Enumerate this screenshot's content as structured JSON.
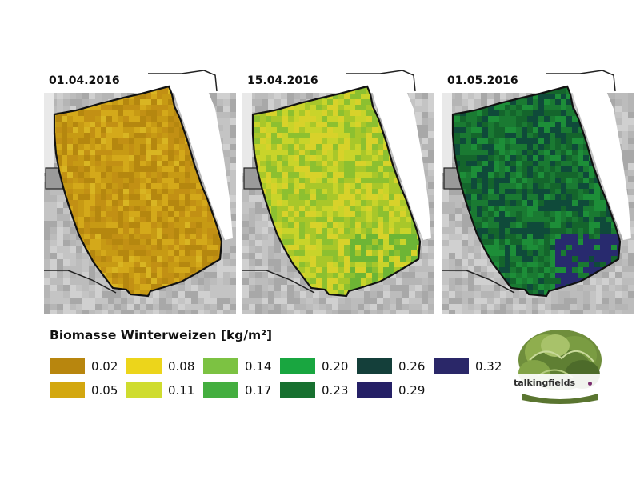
{
  "panels": [
    {
      "date": "01.04.2016",
      "colors": [
        "#b5870f",
        "#c79a14",
        "#d4a91a",
        "#c29014",
        "#d9b522"
      ]
    },
    {
      "date": "15.04.2016",
      "colors": [
        "#c9d42a",
        "#a8c72a",
        "#8cc030",
        "#d8d22a",
        "#6db535"
      ]
    },
    {
      "date": "01.05.2016",
      "colors": [
        "#1a7a32",
        "#14652c",
        "#0f4a3a",
        "#1d8e38",
        "#282a6e"
      ]
    }
  ],
  "legend": {
    "title": "Biomasse Winterweizen [kg/m²]",
    "items": [
      {
        "value": "0.02",
        "color": "#b8860e"
      },
      {
        "value": "0.05",
        "color": "#d3a70f"
      },
      {
        "value": "0.08",
        "color": "#ecd51b"
      },
      {
        "value": "0.11",
        "color": "#cfdc2f"
      },
      {
        "value": "0.14",
        "color": "#7cc242"
      },
      {
        "value": "0.17",
        "color": "#44ae3f"
      },
      {
        "value": "0.20",
        "color": "#19a640"
      },
      {
        "value": "0.23",
        "color": "#17702f"
      },
      {
        "value": "0.26",
        "color": "#143f3a"
      },
      {
        "value": "0.29",
        "color": "#252066"
      },
      {
        "value": "0.32",
        "color": "#2a2768"
      }
    ]
  },
  "logo": {
    "text": "talkingfields",
    "dot_color": "#7a2d6e"
  }
}
